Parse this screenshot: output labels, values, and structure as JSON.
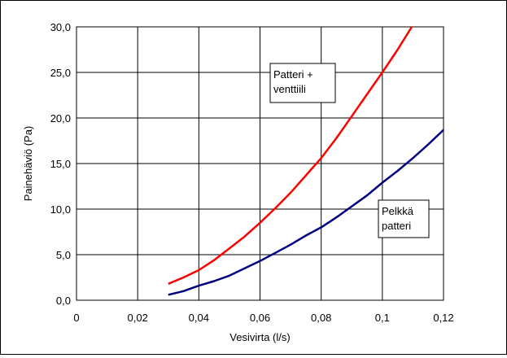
{
  "chart_data": {
    "type": "line",
    "title": "",
    "xlabel": "Vesivirta (l/s)",
    "ylabel": "Painehäviö (Pa)",
    "xlim": [
      0,
      0.12
    ],
    "ylim": [
      0,
      30
    ],
    "x_ticks": [
      0,
      0.02,
      0.04,
      0.06,
      0.08,
      0.1,
      0.12
    ],
    "x_tick_labels": [
      "0",
      "0,02",
      "0,04",
      "0,06",
      "0,08",
      "0,1",
      "0,12"
    ],
    "y_ticks": [
      0,
      5,
      10,
      15,
      20,
      25,
      30
    ],
    "y_tick_labels": [
      "0,0",
      "5,0",
      "10,0",
      "15,0",
      "20,0",
      "25,0",
      "30,0"
    ],
    "grid": true,
    "legend": "none",
    "series": [
      {
        "color": "#ff0000",
        "x": [
          0.03,
          0.035,
          0.04,
          0.045,
          0.05,
          0.055,
          0.06,
          0.065,
          0.07,
          0.075,
          0.08,
          0.085,
          0.09,
          0.095,
          0.1,
          0.105,
          0.11
        ],
        "y": [
          1.8,
          2.5,
          3.3,
          4.4,
          5.7,
          7.0,
          8.5,
          10.1,
          11.8,
          13.7,
          15.6,
          17.8,
          20.2,
          22.6,
          25.0,
          27.5,
          30.2
        ]
      },
      {
        "color": "#000080",
        "x": [
          0.03,
          0.035,
          0.04,
          0.045,
          0.05,
          0.055,
          0.06,
          0.065,
          0.07,
          0.075,
          0.08,
          0.085,
          0.09,
          0.095,
          0.1,
          0.105,
          0.11,
          0.115,
          0.12
        ],
        "y": [
          0.6,
          1.0,
          1.6,
          2.1,
          2.7,
          3.5,
          4.3,
          5.2,
          6.1,
          7.1,
          8.0,
          9.1,
          10.3,
          11.5,
          12.9,
          14.2,
          15.6,
          17.1,
          18.7
        ]
      }
    ],
    "annotations": [
      {
        "lines": [
          "Patteri +",
          "venttiili"
        ]
      },
      {
        "lines": [
          "Pelkkä",
          "patteri"
        ]
      }
    ]
  }
}
